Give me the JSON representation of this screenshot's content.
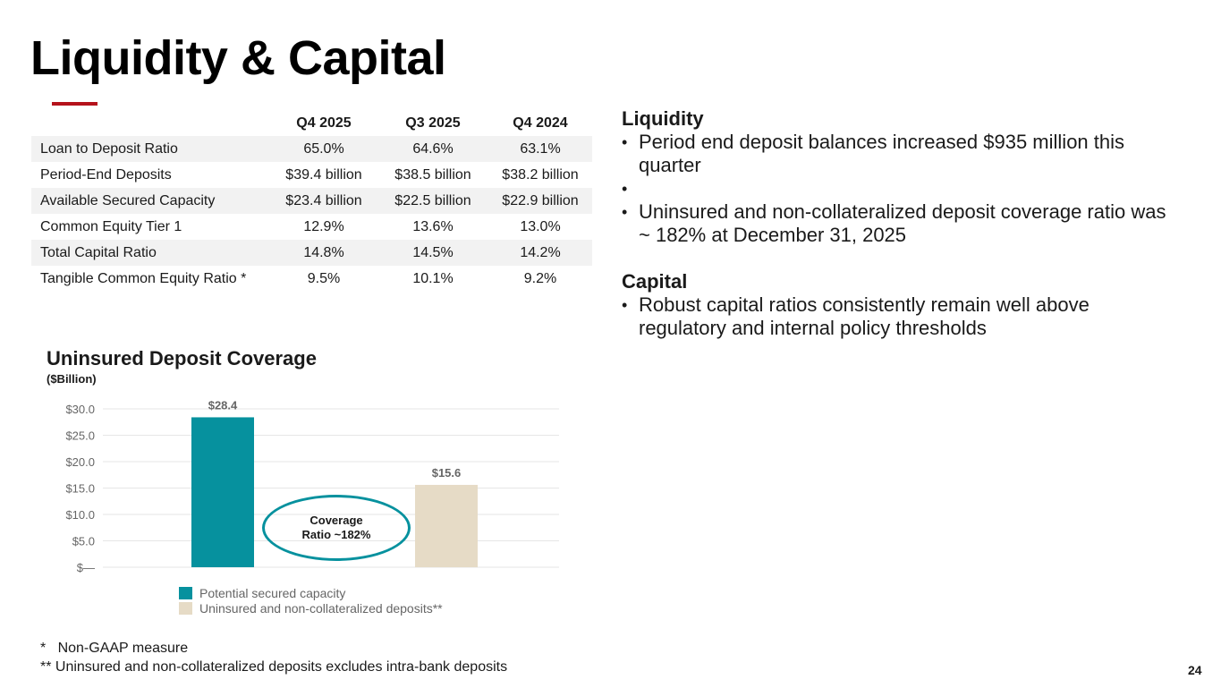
{
  "title": "Liquidity & Capital",
  "colors": {
    "accent_red": "#b5121b",
    "teal": "#06919e",
    "beige": "#e6dbc6",
    "grid": "#e6e6e6"
  },
  "table": {
    "headers": [
      "",
      "Q4 2025",
      "Q3 2025",
      "Q4 2024"
    ],
    "rows": [
      {
        "label": "Loan to Deposit Ratio",
        "values": [
          "65.0%",
          "64.6%",
          "63.1%"
        ]
      },
      {
        "label": "Period-End Deposits",
        "values": [
          "$39.4 billion",
          "$38.5 billion",
          "$38.2 billion"
        ]
      },
      {
        "label": "Available Secured Capacity",
        "values": [
          "$23.4 billion",
          "$22.5 billion",
          "$22.9 billion"
        ]
      },
      {
        "label": "Common Equity Tier 1",
        "values": [
          "12.9%",
          "13.6%",
          "13.0%"
        ]
      },
      {
        "label": "Total Capital Ratio",
        "values": [
          "14.8%",
          "14.5%",
          "14.2%"
        ]
      },
      {
        "label": "Tangible Common Equity Ratio *",
        "values": [
          "9.5%",
          "10.1%",
          "9.2%"
        ]
      }
    ]
  },
  "commentary": {
    "liquidity_heading": "Liquidity",
    "liquidity_bullets": [
      "Period end deposit balances increased $935 million this quarter",
      "Uninsured and non-collateralized deposit coverage ratio was ~ 182% at December 31, 2025"
    ],
    "capital_heading": "Capital",
    "capital_bullets": [
      "Robust capital ratios consistently remain well above regulatory and internal policy thresholds"
    ]
  },
  "chart_data": {
    "type": "bar",
    "title": "Uninsured Deposit Coverage",
    "subtitle": "($Billion)",
    "categories": [
      "Potential secured capacity",
      "Uninsured and non-collateralized deposits**"
    ],
    "values": [
      28.4,
      15.6
    ],
    "data_labels": [
      "$28.4",
      "$15.6"
    ],
    "ylim": [
      0,
      30
    ],
    "yticks": [
      0,
      5,
      10,
      15,
      20,
      25,
      30
    ],
    "ytick_labels": [
      "$—",
      "$5.0",
      "$10.0",
      "$15.0",
      "$20.0",
      "$25.0",
      "$30.0"
    ],
    "grid": true,
    "legend": "bottom",
    "legend_entries": [
      "Potential secured capacity",
      "Uninsured and non-collateralized deposits**"
    ],
    "annotation": "Coverage Ratio ~182%"
  },
  "footnotes": [
    "*   Non-GAAP measure",
    "** Uninsured and non-collateralized deposits excludes intra-bank deposits"
  ],
  "page_number": "24"
}
